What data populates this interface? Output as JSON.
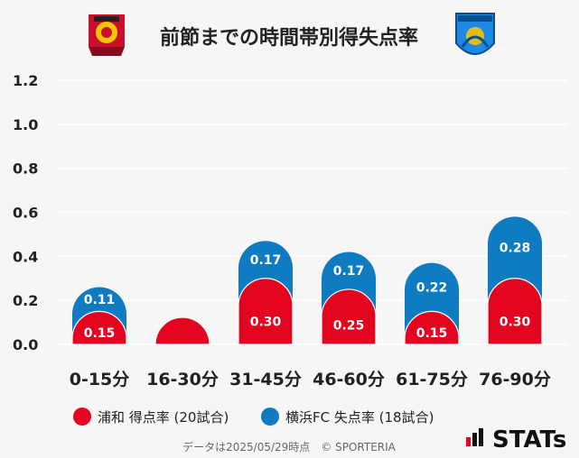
{
  "chart_data": {
    "type": "bar",
    "title": "前節までの時間帯別得失点率",
    "categories": [
      "0-15分",
      "16-30分",
      "31-45分",
      "46-60分",
      "61-75分",
      "76-90分"
    ],
    "series": [
      {
        "name": "浦和 得点率 (20試合)",
        "color": "#e3051f",
        "values": [
          0.15,
          0.05,
          0.3,
          0.25,
          0.15,
          0.3
        ],
        "labels": [
          "0.15",
          "",
          "0.30",
          "0.25",
          "0.15",
          "0.30"
        ]
      },
      {
        "name": "横浜FC 失点率 (18試合)",
        "color": "#0f7bc1",
        "values": [
          0.11,
          0.06,
          0.17,
          0.17,
          0.22,
          0.28
        ],
        "labels": [
          "0.11",
          "",
          "0.17",
          "0.17",
          "0.22",
          "0.28"
        ]
      }
    ],
    "stacked": true,
    "ylim": [
      0,
      1.2
    ],
    "yticks": [
      "0.0",
      "0.2",
      "0.4",
      "0.6",
      "0.8",
      "1.0",
      "1.2"
    ],
    "grid": true,
    "legend_position": "bottom-left"
  },
  "footer": {
    "source": "データは2025/05/29時点　© SPORTERIA",
    "brand": "STATs"
  },
  "logos": {
    "left_crest_text": "URAWA RED DIAMONDS",
    "right_crest_text": "YOKOHAMA FC"
  }
}
